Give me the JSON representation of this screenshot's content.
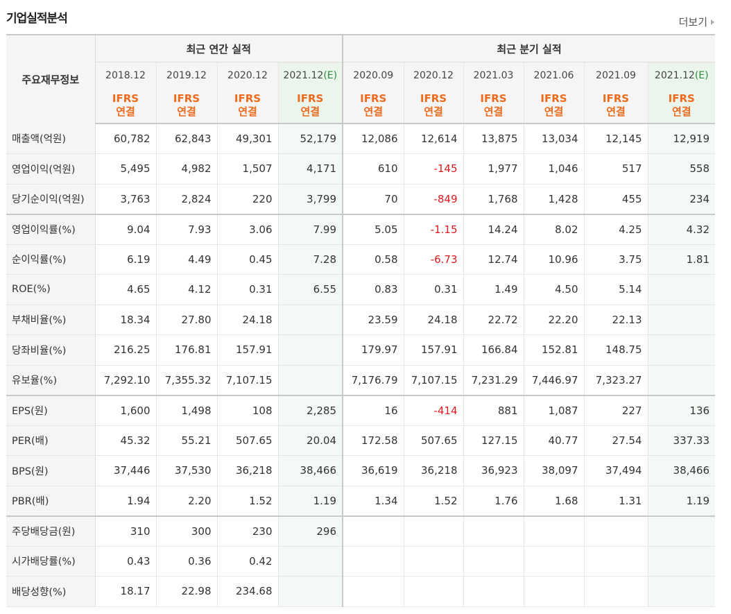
{
  "header": {
    "title": "기업실적분석",
    "more_label": "더보기"
  },
  "table": {
    "corner_label": "주요재무정보",
    "group_annual": "최근 연간 실적",
    "group_quarter": "최근 분기 실적",
    "periods": [
      {
        "label": "2018.12",
        "est": ""
      },
      {
        "label": "2019.12",
        "est": ""
      },
      {
        "label": "2020.12",
        "est": ""
      },
      {
        "label": "2021.12",
        "est": "(E)"
      },
      {
        "label": "2020.09",
        "est": ""
      },
      {
        "label": "2020.12",
        "est": ""
      },
      {
        "label": "2021.03",
        "est": ""
      },
      {
        "label": "2021.06",
        "est": ""
      },
      {
        "label": "2021.09",
        "est": ""
      },
      {
        "label": "2021.12",
        "est": "(E)"
      }
    ],
    "ifrs_line1": "IFRS",
    "ifrs_line2": "연결",
    "rows": [
      {
        "label": "매출액(억원)",
        "values": [
          "60,782",
          "62,843",
          "49,301",
          "52,179",
          "12,086",
          "12,614",
          "13,875",
          "13,034",
          "12,145",
          "12,919"
        ]
      },
      {
        "label": "영업이익(억원)",
        "values": [
          "5,495",
          "4,982",
          "1,507",
          "4,171",
          "610",
          "-145",
          "1,977",
          "1,046",
          "517",
          "558"
        ]
      },
      {
        "label": "당기순이익(억원)",
        "values": [
          "3,763",
          "2,824",
          "220",
          "3,799",
          "70",
          "-849",
          "1,768",
          "1,428",
          "455",
          "234"
        ]
      },
      {
        "label": "영업이익률(%)",
        "values": [
          "9.04",
          "7.93",
          "3.06",
          "7.99",
          "5.05",
          "-1.15",
          "14.24",
          "8.02",
          "4.25",
          "4.32"
        ]
      },
      {
        "label": "순이익률(%)",
        "values": [
          "6.19",
          "4.49",
          "0.45",
          "7.28",
          "0.58",
          "-6.73",
          "12.74",
          "10.96",
          "3.75",
          "1.81"
        ]
      },
      {
        "label": "ROE(%)",
        "values": [
          "4.65",
          "4.12",
          "0.31",
          "6.55",
          "0.83",
          "0.31",
          "1.49",
          "4.50",
          "5.14",
          ""
        ]
      },
      {
        "label": "부채비율(%)",
        "values": [
          "18.34",
          "27.80",
          "24.18",
          "",
          "23.59",
          "24.18",
          "22.72",
          "22.20",
          "22.13",
          ""
        ]
      },
      {
        "label": "당좌비율(%)",
        "values": [
          "216.25",
          "176.81",
          "157.91",
          "",
          "179.97",
          "157.91",
          "166.84",
          "152.81",
          "148.75",
          ""
        ]
      },
      {
        "label": "유보율(%)",
        "values": [
          "7,292.10",
          "7,355.32",
          "7,107.15",
          "",
          "7,176.79",
          "7,107.15",
          "7,231.29",
          "7,446.97",
          "7,323.27",
          ""
        ]
      },
      {
        "label": "EPS(원)",
        "values": [
          "1,600",
          "1,498",
          "108",
          "2,285",
          "16",
          "-414",
          "881",
          "1,087",
          "227",
          "136"
        ]
      },
      {
        "label": "PER(배)",
        "values": [
          "45.32",
          "55.21",
          "507.65",
          "20.04",
          "172.58",
          "507.65",
          "127.15",
          "40.77",
          "27.54",
          "337.33"
        ]
      },
      {
        "label": "BPS(원)",
        "values": [
          "37,446",
          "37,530",
          "36,218",
          "38,466",
          "36,619",
          "36,218",
          "36,923",
          "38,097",
          "37,494",
          "38,466"
        ]
      },
      {
        "label": "PBR(배)",
        "values": [
          "1.94",
          "2.20",
          "1.52",
          "1.19",
          "1.34",
          "1.52",
          "1.76",
          "1.68",
          "1.31",
          "1.19"
        ]
      },
      {
        "label": "주당배당금(원)",
        "values": [
          "310",
          "300",
          "230",
          "296",
          "",
          "",
          "",
          "",
          "",
          ""
        ]
      },
      {
        "label": "시가배당률(%)",
        "values": [
          "0.43",
          "0.36",
          "0.42",
          "",
          "",
          "",
          "",
          "",
          "",
          ""
        ]
      },
      {
        "label": "배당성향(%)",
        "values": [
          "18.17",
          "22.98",
          "234.68",
          "",
          "",
          "",
          "",
          "",
          "",
          ""
        ]
      }
    ]
  },
  "colors": {
    "negative": "#e0191e",
    "ifrs": "#ee6a1c",
    "estimate_bg": "#f3f9f4",
    "estimate_mark": "#2e8b3a"
  }
}
